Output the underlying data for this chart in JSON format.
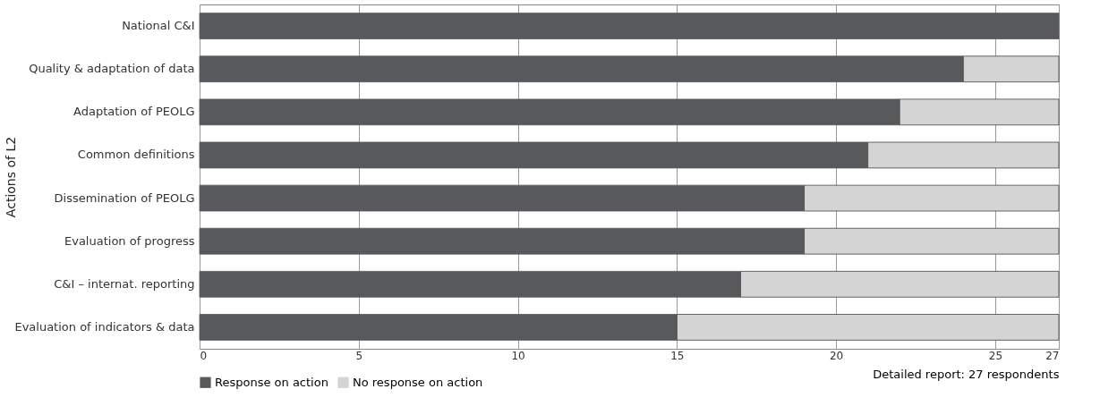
{
  "chart_data": {
    "type": "bar",
    "orientation": "horizontal",
    "stacked": true,
    "ylabel": "Actions of L2",
    "categories": [
      "National C&I",
      "Quality & adaptation of data",
      "Adaptation of PEOLG",
      "Common definitions",
      "Dissemination of PEOLG",
      "Evaluation of progress",
      "C&I – internat. reporting",
      "Evaluation of indicators & data"
    ],
    "series": [
      {
        "name": "Response on action",
        "color": "#58595b",
        "values": [
          27,
          24,
          22,
          21,
          19,
          19,
          17,
          15
        ]
      },
      {
        "name": "No response on action",
        "color": "#d4d4d4",
        "values": [
          0,
          3,
          5,
          6,
          8,
          8,
          10,
          12
        ]
      }
    ],
    "xlim": [
      0,
      27
    ],
    "xticks": [
      0,
      5,
      10,
      15,
      20,
      25,
      27
    ],
    "grid": "x",
    "legend": "bottom",
    "annotations": [
      "Detailed report: 27 respondents"
    ]
  }
}
